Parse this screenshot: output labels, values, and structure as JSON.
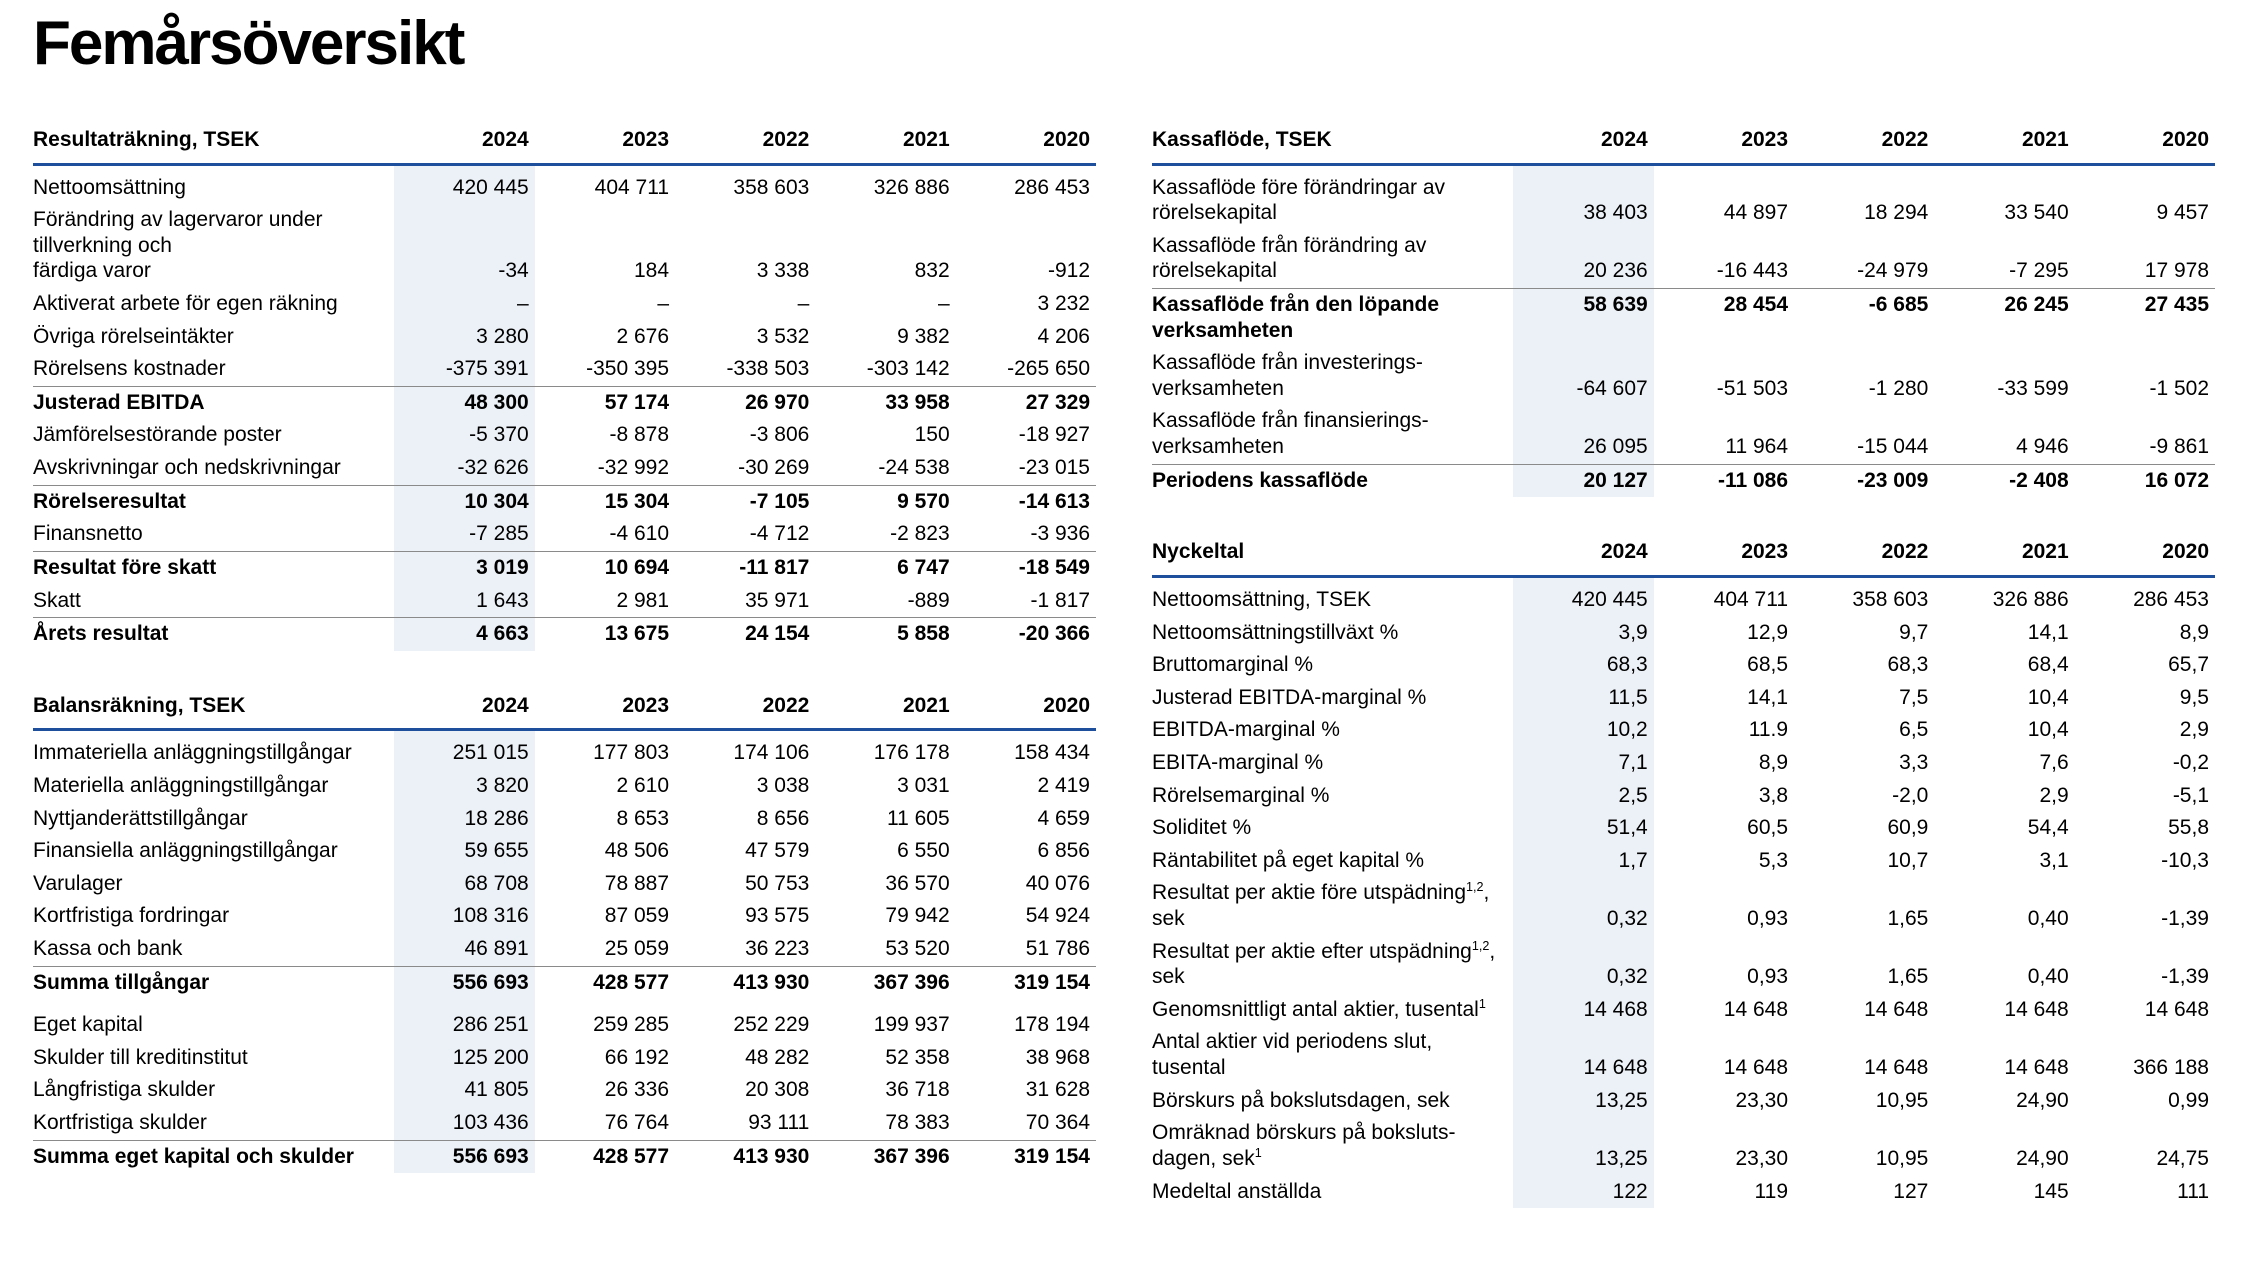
{
  "page": {
    "title": "Femårsöversikt"
  },
  "colors": {
    "accent_line": "#1E4F9D",
    "highlight_column_bg": "#ECF1F7",
    "total_rule": "#8A8A8A",
    "text": "#000000"
  },
  "years": [
    "2024",
    "2023",
    "2022",
    "2021",
    "2020"
  ],
  "tables": {
    "resultat": {
      "header": "Resultaträkning, TSEK",
      "rows": [
        {
          "label": "Nettoomsättning",
          "values": [
            "420 445",
            "404 711",
            "358 603",
            "326 886",
            "286 453"
          ]
        },
        {
          "label": "Förändring av lagervaror under\ntillverkning och\nfärdiga varor",
          "values": [
            "-34",
            "184",
            "3 338",
            "832",
            "-912"
          ]
        },
        {
          "label": "Aktiverat arbete för egen räkning",
          "values": [
            "–",
            "–",
            "–",
            "–",
            "3 232"
          ]
        },
        {
          "label": "Övriga rörelseintäkter",
          "values": [
            "3 280",
            "2 676",
            "3 532",
            "9 382",
            "4 206"
          ]
        },
        {
          "label": "Rörelsens kostnader",
          "values": [
            "-375 391",
            "-350 395",
            "-338 503",
            "-303 142",
            "-265 650"
          ]
        },
        {
          "label": "Justerad EBITDA",
          "bold": true,
          "values": [
            "48 300",
            "57 174",
            "26 970",
            "33 958",
            "27 329"
          ]
        },
        {
          "label": "Jämförelsestörande poster",
          "values": [
            "-5 370",
            "-8 878",
            "-3 806",
            "150",
            "-18 927"
          ]
        },
        {
          "label": "Avskrivningar och nedskrivningar",
          "values": [
            "-32 626",
            "-32 992",
            "-30 269",
            "-24 538",
            "-23 015"
          ]
        },
        {
          "label": "Rörelseresultat",
          "bold": true,
          "values": [
            "10 304",
            "15 304",
            "-7 105",
            "9 570",
            "-14 613"
          ]
        },
        {
          "label": "Finansnetto",
          "values": [
            "-7 285",
            "-4 610",
            "-4 712",
            "-2 823",
            "-3 936"
          ]
        },
        {
          "label": "Resultat före skatt",
          "bold": true,
          "values": [
            "3 019",
            "10 694",
            "-11 817",
            "6 747",
            "-18 549"
          ]
        },
        {
          "label": "Skatt",
          "values": [
            "1 643",
            "2 981",
            "35 971",
            "-889",
            "-1 817"
          ]
        },
        {
          "label": "Årets resultat",
          "bold": true,
          "values": [
            "4 663",
            "13 675",
            "24 154",
            "5 858",
            "-20 366"
          ]
        }
      ]
    },
    "balans": {
      "header": "Balansräkning, TSEK",
      "rows": [
        {
          "label": "Immateriella anläggningstillgångar",
          "values": [
            "251 015",
            "177 803",
            "174 106",
            "176 178",
            "158 434"
          ]
        },
        {
          "label": "Materiella anläggningstillgångar",
          "values": [
            "3 820",
            "2 610",
            "3 038",
            "3 031",
            "2 419"
          ]
        },
        {
          "label": "Nyttjanderättstillgångar",
          "values": [
            "18 286",
            "8 653",
            "8 656",
            "11 605",
            "4 659"
          ]
        },
        {
          "label": "Finansiella anläggningstillgångar",
          "values": [
            "59 655",
            "48 506",
            "47 579",
            "6 550",
            "6 856"
          ]
        },
        {
          "label": "Varulager",
          "values": [
            "68 708",
            "78 887",
            "50 753",
            "36 570",
            "40 076"
          ]
        },
        {
          "label": "Kortfristiga fordringar",
          "values": [
            "108 316",
            "87 059",
            "93 575",
            "79 942",
            "54 924"
          ]
        },
        {
          "label": "Kassa och bank",
          "values": [
            "46 891",
            "25 059",
            "36 223",
            "53 520",
            "51 786"
          ]
        },
        {
          "label": "Summa tillgångar",
          "bold": true,
          "values": [
            "556 693",
            "428 577",
            "413 930",
            "367 396",
            "319 154"
          ]
        },
        {
          "label": "Eget kapital",
          "gap": true,
          "values": [
            "286 251",
            "259 285",
            "252 229",
            "199 937",
            "178 194"
          ]
        },
        {
          "label": "Skulder till kreditinstitut",
          "values": [
            "125 200",
            "66 192",
            "48 282",
            "52 358",
            "38 968"
          ]
        },
        {
          "label": "Långfristiga skulder",
          "values": [
            "41 805",
            "26 336",
            "20 308",
            "36 718",
            "31 628"
          ]
        },
        {
          "label": "Kortfristiga skulder",
          "values": [
            "103 436",
            "76 764",
            "93 111",
            "78 383",
            "70 364"
          ]
        },
        {
          "label": "Summa eget kapital och skulder",
          "bold": true,
          "values": [
            "556 693",
            "428 577",
            "413 930",
            "367 396",
            "319 154"
          ]
        }
      ]
    },
    "kassaflode": {
      "header": "Kassaflöde, TSEK",
      "rows": [
        {
          "label": "Kassaflöde före förändringar av\nrörelsekapital",
          "values": [
            "38 403",
            "44 897",
            "18 294",
            "33 540",
            "9 457"
          ]
        },
        {
          "label": "Kassaflöde från förändring av\nrörelsekapital",
          "values": [
            "20 236",
            "-16 443",
            "-24 979",
            "-7 295",
            "17 978"
          ]
        },
        {
          "label": "Kassaflöde från den löpande\nverksamheten",
          "bold": true,
          "valign": "top",
          "values": [
            "58 639",
            "28 454",
            "-6 685",
            "26 245",
            "27 435"
          ]
        },
        {
          "label": "Kassaflöde från investerings-\nverksamheten",
          "values": [
            "-64 607",
            "-51 503",
            "-1 280",
            "-33 599",
            "-1 502"
          ]
        },
        {
          "label": "Kassaflöde från finansierings-\nverksamheten",
          "values": [
            "26 095",
            "11 964",
            "-15 044",
            "4 946",
            "-9 861"
          ]
        },
        {
          "label": "Periodens kassaflöde",
          "bold": true,
          "values": [
            "20 127",
            "-11 086",
            "-23 009",
            "-2 408",
            "16 072"
          ]
        }
      ]
    },
    "nyckeltal": {
      "header": "Nyckeltal",
      "rows": [
        {
          "label": "Nettoomsättning, TSEK",
          "values": [
            "420 445",
            "404 711",
            "358 603",
            "326 886",
            "286 453"
          ]
        },
        {
          "label": "Nettoomsättningstillväxt %",
          "values": [
            "3,9",
            "12,9",
            "9,7",
            "14,1",
            "8,9"
          ]
        },
        {
          "label": "Bruttomarginal %",
          "values": [
            "68,3",
            "68,5",
            "68,3",
            "68,4",
            "65,7"
          ]
        },
        {
          "label": "Justerad EBITDA-marginal %",
          "values": [
            "11,5",
            "14,1",
            "7,5",
            "10,4",
            "9,5"
          ]
        },
        {
          "label": "EBITDA-marginal %",
          "values": [
            "10,2",
            "11.9",
            "6,5",
            "10,4",
            "2,9"
          ]
        },
        {
          "label": "EBITA-marginal %",
          "values": [
            "7,1",
            "8,9",
            "3,3",
            "7,6",
            "-0,2"
          ]
        },
        {
          "label": "Rörelsemarginal %",
          "values": [
            "2,5",
            "3,8",
            "-2,0",
            "2,9",
            "-5,1"
          ]
        },
        {
          "label": "Soliditet %",
          "values": [
            "51,4",
            "60,5",
            "60,9",
            "54,4",
            "55,8"
          ]
        },
        {
          "label": "Räntabilitet på eget kapital %",
          "values": [
            "1,7",
            "5,3",
            "10,7",
            "3,1",
            "-10,3"
          ]
        },
        {
          "label_parts": [
            {
              "t": "Resultat per aktie före utspädning"
            },
            {
              "t": "1,2",
              "sup": true
            },
            {
              "t": ",\nsek"
            }
          ],
          "values": [
            "0,32",
            "0,93",
            "1,65",
            "0,40",
            "-1,39"
          ]
        },
        {
          "label_parts": [
            {
              "t": "Resultat per aktie efter utspädning"
            },
            {
              "t": "1,2",
              "sup": true
            },
            {
              "t": ",\nsek"
            }
          ],
          "values": [
            "0,32",
            "0,93",
            "1,65",
            "0,40",
            "-1,39"
          ]
        },
        {
          "label_parts": [
            {
              "t": "Genomsnittligt antal aktier, tusental"
            },
            {
              "t": "1",
              "sup": true
            }
          ],
          "values": [
            "14 468",
            "14 648",
            "14 648",
            "14 648",
            "14 648"
          ]
        },
        {
          "label": "Antal aktier vid periodens slut,\ntusental",
          "values": [
            "14 648",
            "14 648",
            "14 648",
            "14 648",
            "366 188"
          ]
        },
        {
          "label": "Börskurs på bokslutsdagen, sek",
          "values": [
            "13,25",
            "23,30",
            "10,95",
            "24,90",
            "0,99"
          ]
        },
        {
          "label_parts": [
            {
              "t": "Omräknad börskurs på boksluts-\ndagen, sek"
            },
            {
              "t": "1",
              "sup": true
            }
          ],
          "values": [
            "13,25",
            "23,30",
            "10,95",
            "24,90",
            "24,75"
          ]
        },
        {
          "label": "Medeltal anställda",
          "values": [
            "122",
            "119",
            "127",
            "145",
            "111"
          ]
        }
      ]
    }
  }
}
